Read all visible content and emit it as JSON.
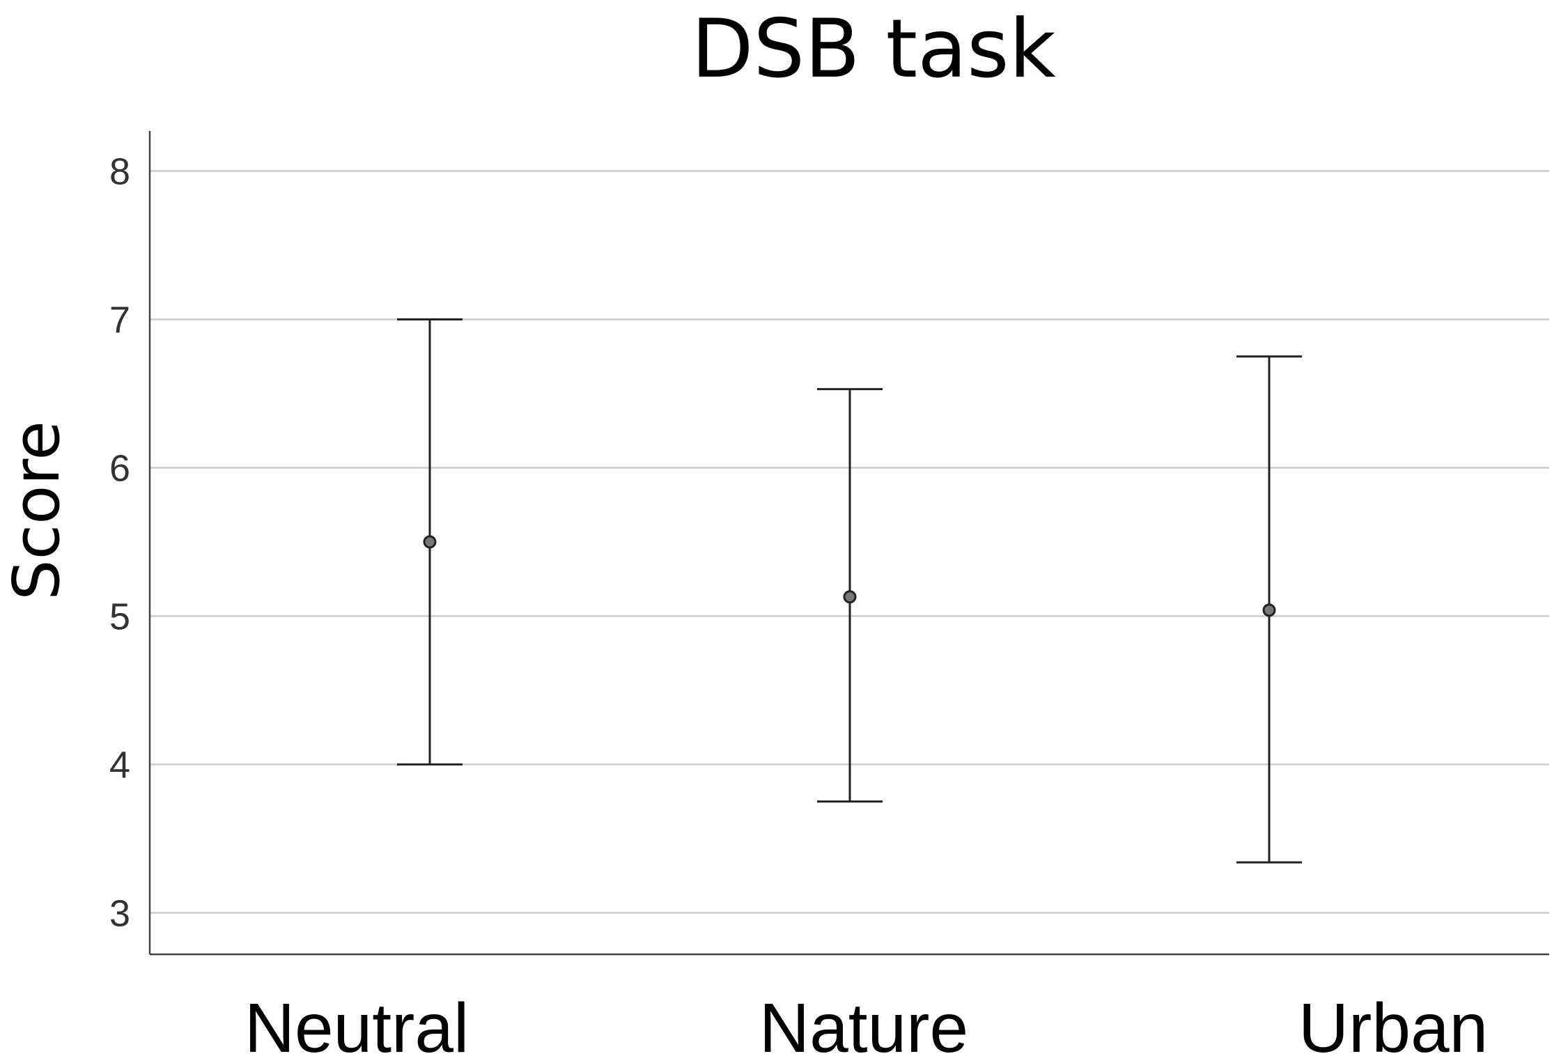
{
  "chart_data": {
    "type": "scatter",
    "title": "DSB task",
    "xlabel": "",
    "ylabel": "Score",
    "categories": [
      "Neutral",
      "Nature",
      "Urban"
    ],
    "series": [
      {
        "values": [
          5.5,
          5.13,
          5.04
        ],
        "error_low": [
          4.0,
          3.75,
          3.34
        ],
        "error_high": [
          7.0,
          6.53,
          6.75
        ]
      }
    ],
    "yticks": [
      3,
      4,
      5,
      6,
      7,
      8
    ],
    "ylim": [
      2.72,
      8.27
    ],
    "grid": true,
    "legend": "none"
  }
}
